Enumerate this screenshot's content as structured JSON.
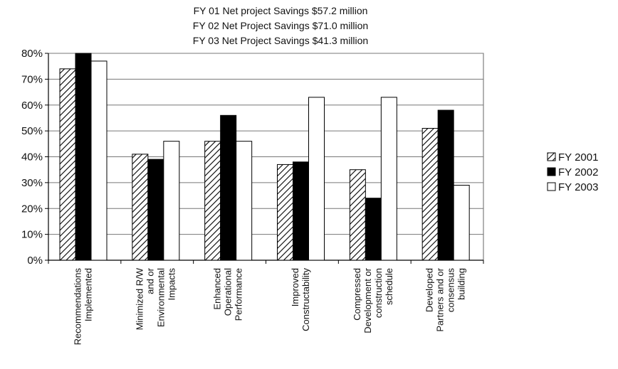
{
  "chart_data": {
    "type": "bar",
    "title_lines": [
      "FY 01 Net project Savings $57.2 million",
      "FY 02 Net Project Savings $71.0 million",
      "FY 03 Net Project Savings $41.3 million"
    ],
    "categories": [
      [
        "Recommendations",
        "Implemented"
      ],
      [
        "Minimized R/W",
        "and or",
        "Environmental",
        "Impacts"
      ],
      [
        "Enhanced",
        "Operational",
        "Performance"
      ],
      [
        "Improved",
        "Constructability"
      ],
      [
        "Compressed",
        "Development or",
        "construction",
        "schedule"
      ],
      [
        "Developed",
        "Partners and or",
        "consensus",
        "building"
      ]
    ],
    "series": [
      {
        "name": "FY 2001",
        "fill": "hatch",
        "values": [
          74,
          41,
          46,
          37,
          35,
          51
        ]
      },
      {
        "name": "FY 2002",
        "fill": "#000000",
        "values": [
          80,
          39,
          56,
          38,
          24,
          58
        ]
      },
      {
        "name": "FY 2003",
        "fill": "#ffffff",
        "values": [
          77,
          46,
          46,
          63,
          63,
          29
        ]
      }
    ],
    "yticks": [
      "0%",
      "10%",
      "20%",
      "30%",
      "40%",
      "50%",
      "60%",
      "70%",
      "80%"
    ],
    "ylim": [
      0,
      80
    ],
    "grid": true,
    "legend": "right"
  }
}
